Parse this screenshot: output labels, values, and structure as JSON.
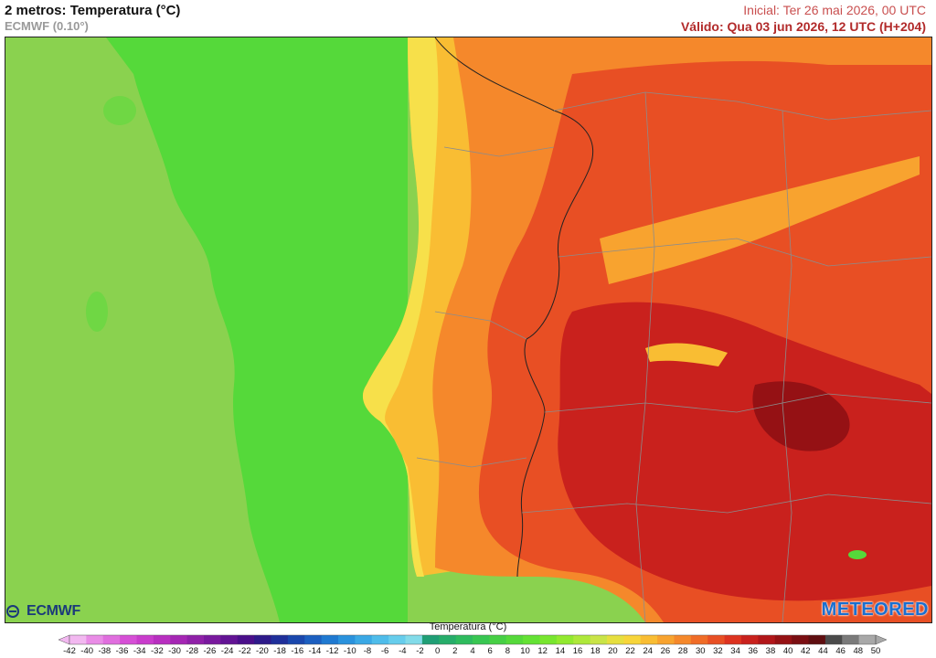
{
  "header": {
    "title": "2 metros: Temperatura (°C)",
    "subtitle": "ECMWF (0.10°)",
    "initial": "Inicial: Ter 26 mai 2026, 00 UTC",
    "valid": "Válido: Qua 03 jun 2026, 12 UTC (H+204)"
  },
  "logos": {
    "left": "ECMWF",
    "right": "METEORED"
  },
  "legend": {
    "title": "Temperatura (°C)",
    "ticks": [
      "-42",
      "-40",
      "-38",
      "-36",
      "-34",
      "-32",
      "-30",
      "-28",
      "-26",
      "-24",
      "-22",
      "-20",
      "-18",
      "-16",
      "-14",
      "-12",
      "-10",
      "-8",
      "-6",
      "-4",
      "-2",
      "0",
      "2",
      "4",
      "6",
      "8",
      "10",
      "12",
      "14",
      "16",
      "18",
      "20",
      "22",
      "24",
      "26",
      "28",
      "30",
      "32",
      "34",
      "36",
      "38",
      "40",
      "42",
      "44",
      "46",
      "48",
      "50"
    ],
    "colors": [
      "#f2b8f0",
      "#e98ce6",
      "#e06ede",
      "#d64fd6",
      "#c93ccc",
      "#b82fc0",
      "#a526b4",
      "#8f20a8",
      "#79199e",
      "#621394",
      "#4a0f8a",
      "#2e1a8a",
      "#1f2f9a",
      "#1a47ad",
      "#1c5fc0",
      "#1f79d1",
      "#2a92dd",
      "#3aa8e5",
      "#4ebcea",
      "#66cdec",
      "#82dbe9",
      "#1f9e75",
      "#26ad6a",
      "#2ebb5e",
      "#38c652",
      "#46cf45",
      "#55d93a",
      "#64e234",
      "#78e62f",
      "#92e92f",
      "#aee83a",
      "#c9e447",
      "#e6df3f",
      "#f7d53a",
      "#f9bd33",
      "#f8a32f",
      "#f5882b",
      "#f06c27",
      "#e84f24",
      "#dd3320",
      "#c9211d",
      "#b11619",
      "#951114",
      "#7a0e12",
      "#5f0e10",
      "#4a4a4a",
      "#7a7a7a",
      "#a8a8a8"
    ]
  }
}
